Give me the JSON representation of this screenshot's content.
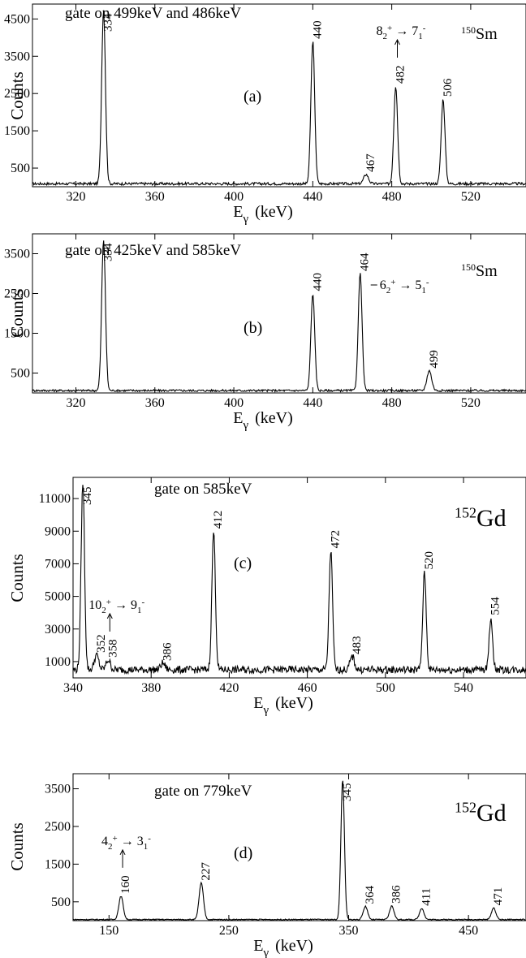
{
  "chart_data": [
    {
      "id": "a",
      "type": "line",
      "panel_label": "(a)",
      "gate_text": "gate on 499keV and 486keV",
      "nucleus_mass": "150",
      "nucleus_symbol": "Sm",
      "xlabel_main": "E",
      "xlabel_sub": "γ",
      "xlabel_unit": "(keV)",
      "ylabel": "Counts",
      "xlim": [
        298,
        548
      ],
      "ylim": [
        0,
        4900
      ],
      "xticks": [
        320,
        360,
        400,
        440,
        480,
        520
      ],
      "yticks": [
        500,
        1500,
        2500,
        3500,
        4500
      ],
      "baseline": 80,
      "peaks": [
        {
          "x": 334,
          "height": 4750,
          "label": "334"
        },
        {
          "x": 440,
          "height": 3900,
          "label": "440"
        },
        {
          "x": 467,
          "height": 330,
          "label": "467"
        },
        {
          "x": 482,
          "height": 2700,
          "label": "482",
          "transition": {
            "base": "8",
            "sub": "2",
            "sup": "+",
            "to_base": "7",
            "to_sub": "1",
            "to_sup": "-"
          }
        },
        {
          "x": 506,
          "height": 2350,
          "label": "506"
        }
      ]
    },
    {
      "id": "b",
      "type": "line",
      "panel_label": "(b)",
      "gate_text": "gate on 425keV and 585keV",
      "nucleus_mass": "150",
      "nucleus_symbol": "Sm",
      "xlabel_main": "E",
      "xlabel_sub": "γ",
      "xlabel_unit": "(keV)",
      "ylabel": "Counts",
      "xlim": [
        298,
        548
      ],
      "ylim": [
        0,
        4000
      ],
      "xticks": [
        320,
        360,
        400,
        440,
        480,
        520
      ],
      "yticks": [
        500,
        1500,
        2500,
        3500
      ],
      "baseline": 60,
      "peaks": [
        {
          "x": 334,
          "height": 3850,
          "label": "334"
        },
        {
          "x": 440,
          "height": 2500,
          "label": "440"
        },
        {
          "x": 464,
          "height": 3000,
          "label": "464",
          "transition": {
            "base": "6",
            "sub": "2",
            "sup": "+",
            "to_base": "5",
            "to_sub": "1",
            "to_sup": "-"
          }
        },
        {
          "x": 499,
          "height": 560,
          "label": "499"
        }
      ]
    },
    {
      "id": "c",
      "type": "line",
      "panel_label": "(c)",
      "gate_text": "gate on 585keV",
      "nucleus_mass": "152",
      "nucleus_symbol": "Gd",
      "xlabel_main": "E",
      "xlabel_sub": "γ",
      "xlabel_unit": "(keV)",
      "ylabel": "Counts",
      "xlim": [
        340,
        572
      ],
      "ylim": [
        0,
        12300
      ],
      "xticks": [
        340,
        380,
        420,
        460,
        500,
        540
      ],
      "yticks": [
        1000,
        3000,
        5000,
        7000,
        9000,
        11000
      ],
      "baseline": 500,
      "peaks": [
        {
          "x": 345,
          "height": 12000,
          "label": "345"
        },
        {
          "x": 352,
          "height": 1400,
          "label": "352"
        },
        {
          "x": 358,
          "height": 1100,
          "label": "358",
          "transition": {
            "base": "10",
            "sub": "2",
            "sup": "+",
            "to_base": "9",
            "to_sub": "1",
            "to_sup": "-"
          }
        },
        {
          "x": 386,
          "height": 900,
          "label": "386"
        },
        {
          "x": 412,
          "height": 9000,
          "label": "412"
        },
        {
          "x": 472,
          "height": 7800,
          "label": "472"
        },
        {
          "x": 483,
          "height": 1300,
          "label": "483"
        },
        {
          "x": 520,
          "height": 6500,
          "label": "520"
        },
        {
          "x": 554,
          "height": 3700,
          "label": "554"
        }
      ]
    },
    {
      "id": "d",
      "type": "line",
      "panel_label": "(d)",
      "gate_text": "gate on 779keV",
      "nucleus_mass": "152",
      "nucleus_symbol": "Gd",
      "xlabel_main": "E",
      "xlabel_sub": "γ",
      "xlabel_unit": "(keV)",
      "ylabel": "Counts",
      "xlim": [
        120,
        498
      ],
      "ylim": [
        0,
        3900
      ],
      "xticks": [
        150,
        250,
        350,
        450
      ],
      "yticks": [
        500,
        1500,
        2500,
        3500
      ],
      "baseline": 30,
      "peaks": [
        {
          "x": 160,
          "height": 650,
          "label": "160",
          "transition": {
            "base": "4",
            "sub": "2",
            "sup": "+",
            "to_base": "3",
            "to_sub": "1",
            "to_sup": "-"
          }
        },
        {
          "x": 227,
          "height": 1000,
          "label": "227"
        },
        {
          "x": 345,
          "height": 3750,
          "label": "345"
        },
        {
          "x": 364,
          "height": 380,
          "label": "364"
        },
        {
          "x": 386,
          "height": 390,
          "label": "386"
        },
        {
          "x": 411,
          "height": 330,
          "label": "411"
        },
        {
          "x": 471,
          "height": 340,
          "label": "471"
        }
      ]
    }
  ]
}
